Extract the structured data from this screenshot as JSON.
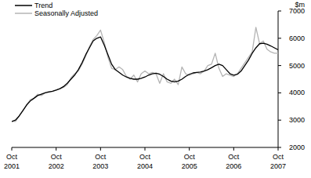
{
  "chart_data": {
    "type": "line",
    "y_label": "$m",
    "categories": [
      "Oct 2001",
      null,
      null,
      null,
      null,
      null,
      null,
      null,
      null,
      null,
      null,
      null,
      "Oct 2002",
      null,
      null,
      null,
      null,
      null,
      null,
      null,
      null,
      null,
      null,
      null,
      "Oct 2003",
      null,
      null,
      null,
      null,
      null,
      null,
      null,
      null,
      null,
      null,
      null,
      "Oct 2004",
      null,
      null,
      null,
      null,
      null,
      null,
      null,
      null,
      null,
      null,
      null,
      "Oct 2005",
      null,
      null,
      null,
      null,
      null,
      null,
      null,
      null,
      null,
      null,
      null,
      "Oct 2006",
      null,
      null,
      null,
      null,
      null,
      null,
      null,
      null,
      null,
      null,
      null,
      "Oct 2007"
    ],
    "series": [
      {
        "name": "Trend",
        "color": "#000000",
        "values": [
          2950,
          3000,
          3150,
          3350,
          3550,
          3700,
          3800,
          3900,
          3950,
          4000,
          4030,
          4060,
          4100,
          4150,
          4230,
          4350,
          4500,
          4650,
          4850,
          5100,
          5400,
          5650,
          5900,
          6000,
          6050,
          5750,
          5400,
          5050,
          4850,
          4750,
          4650,
          4580,
          4530,
          4500,
          4500,
          4530,
          4580,
          4650,
          4700,
          4720,
          4680,
          4600,
          4500,
          4430,
          4400,
          4430,
          4500,
          4600,
          4680,
          4730,
          4750,
          4760,
          4800,
          4850,
          4920,
          5000,
          5050,
          5000,
          4850,
          4700,
          4650,
          4680,
          4800,
          5000,
          5200,
          5450,
          5650,
          5800,
          5820,
          5780,
          5720,
          5650,
          5580
        ]
      },
      {
        "name": "Seasonally Adjusted",
        "color": "#b4b4b4",
        "values": [
          2950,
          2950,
          3150,
          3350,
          3550,
          3750,
          3800,
          3950,
          3900,
          4000,
          4050,
          4050,
          4100,
          4150,
          4200,
          4300,
          4550,
          4700,
          4800,
          5050,
          5350,
          5700,
          5950,
          6100,
          6300,
          5850,
          5300,
          4900,
          4850,
          4950,
          4850,
          4600,
          4500,
          4650,
          4400,
          4700,
          4800,
          4700,
          4750,
          4700,
          4350,
          4700,
          4400,
          4350,
          4500,
          4300,
          4950,
          4700,
          4650,
          4700,
          4750,
          4700,
          4800,
          5000,
          5050,
          5450,
          4900,
          4600,
          4700,
          4650,
          4600,
          4700,
          4900,
          5100,
          5300,
          5500,
          6400,
          5800,
          5900,
          5600,
          5500,
          5450,
          5450
        ]
      }
    ],
    "ylim": [
      2000,
      7000
    ],
    "yticks": [
      2000,
      3000,
      4000,
      5000,
      6000,
      7000
    ],
    "legend": "upper left",
    "grid": false
  }
}
